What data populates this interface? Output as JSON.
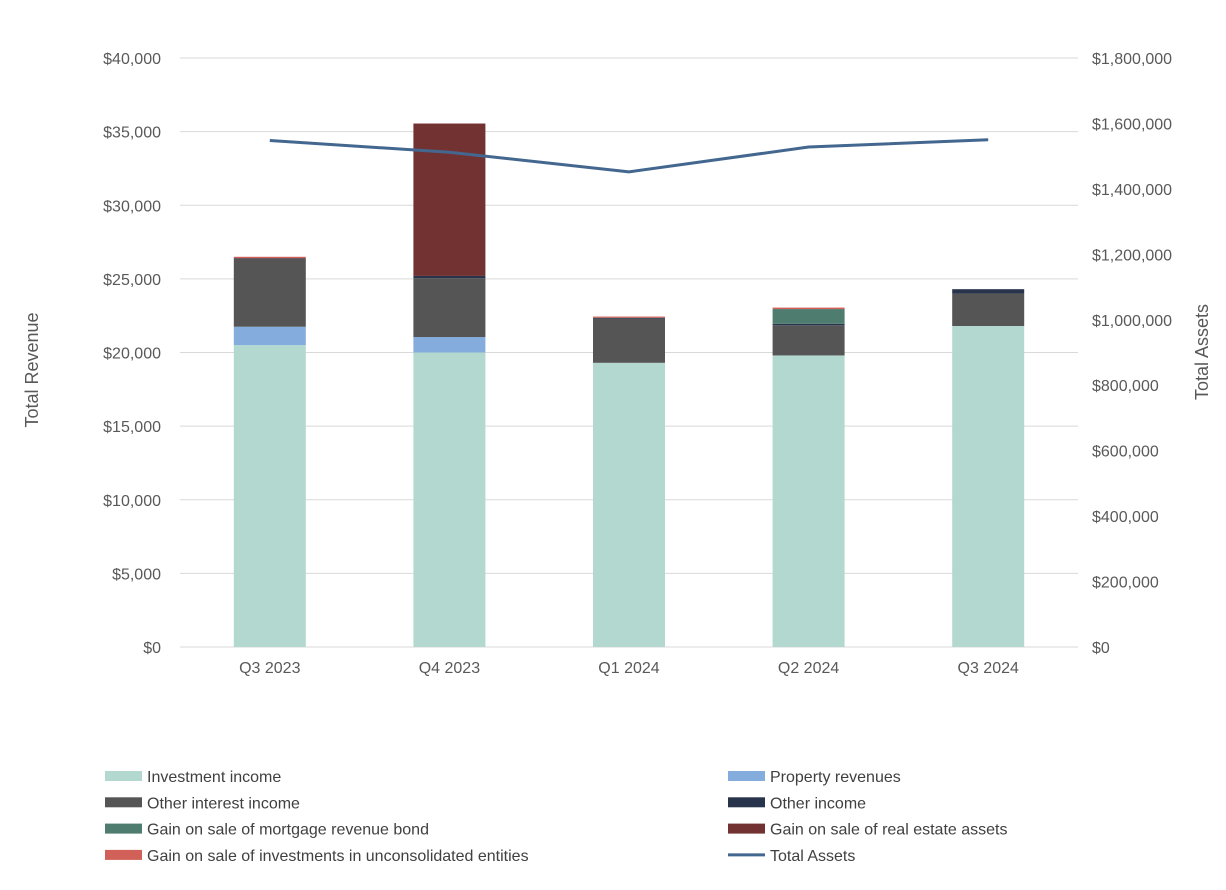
{
  "chart_data": {
    "type": "bar",
    "stacked": true,
    "categories": [
      "Q3 2023",
      "Q4 2023",
      "Q1 2024",
      "Q2 2024",
      "Q3 2024"
    ],
    "ylabel": "Total Revenue",
    "y2label": "Total Assets",
    "ylim": [
      0,
      40000
    ],
    "y2lim": [
      0,
      1800000
    ],
    "yticks": [
      "$0",
      "$5,000",
      "$10,000",
      "$15,000",
      "$20,000",
      "$25,000",
      "$30,000",
      "$35,000",
      "$40,000"
    ],
    "y2ticks": [
      "$0",
      "$200,000",
      "$400,000",
      "$600,000",
      "$800,000",
      "$1,000,000",
      "$1,200,000",
      "$1,400,000",
      "$1,600,000",
      "$1,800,000"
    ],
    "grid": true,
    "legend_position": "bottom",
    "series": [
      {
        "name": "Investment income",
        "color": "#b2d8d0",
        "values": [
          20500,
          20000,
          19300,
          19800,
          21800
        ]
      },
      {
        "name": "Property revenues",
        "color": "#84acdc",
        "values": [
          1250,
          1050,
          0,
          0,
          0
        ]
      },
      {
        "name": "Other interest income",
        "color": "#555555",
        "values": [
          4600,
          4000,
          3000,
          2050,
          2200
        ]
      },
      {
        "name": "Other income",
        "color": "#28344c",
        "values": [
          50,
          150,
          60,
          100,
          300
        ]
      },
      {
        "name": "Gain on sale of mortgage revenue bond",
        "color": "#4e7c6e",
        "values": [
          0,
          0,
          0,
          1000,
          0
        ]
      },
      {
        "name": "Gain on sale of real estate assets",
        "color": "#733232",
        "values": [
          0,
          10350,
          0,
          0,
          0
        ]
      },
      {
        "name": "Gain on sale of investments in unconsolidated entities",
        "color": "#d06058",
        "values": [
          100,
          0,
          80,
          100,
          0
        ]
      }
    ],
    "line_series": {
      "name": "Total Assets",
      "color": "#44678f",
      "axis": "right",
      "values": [
        1548000,
        1512000,
        1452000,
        1528000,
        1550000
      ]
    }
  }
}
